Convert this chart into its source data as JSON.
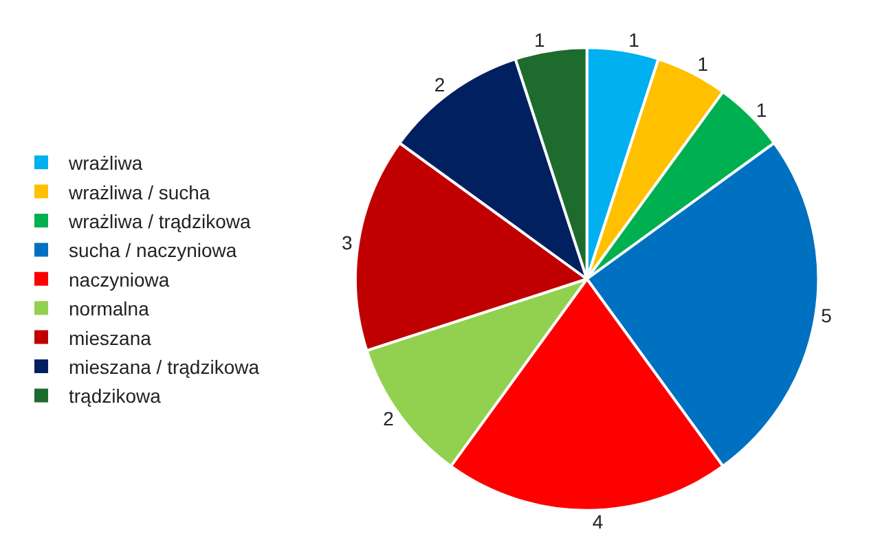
{
  "chart_data": {
    "type": "pie",
    "categories": [
      "wrażliwa",
      "wrażliwa / sucha",
      "wrażliwa / trądzikowa",
      "sucha / naczyniowa",
      "naczyniowa",
      "normalna",
      "mieszana",
      "mieszana / trądzikowa",
      "trądzikowa"
    ],
    "values": [
      1,
      1,
      1,
      5,
      4,
      2,
      3,
      2,
      1
    ],
    "colors": [
      "#00b0f0",
      "#ffc000",
      "#00b050",
      "#0070c0",
      "#ff0000",
      "#92d050",
      "#c00000",
      "#002060",
      "#1e6b2e"
    ],
    "data_labels": true,
    "legend": "left"
  }
}
